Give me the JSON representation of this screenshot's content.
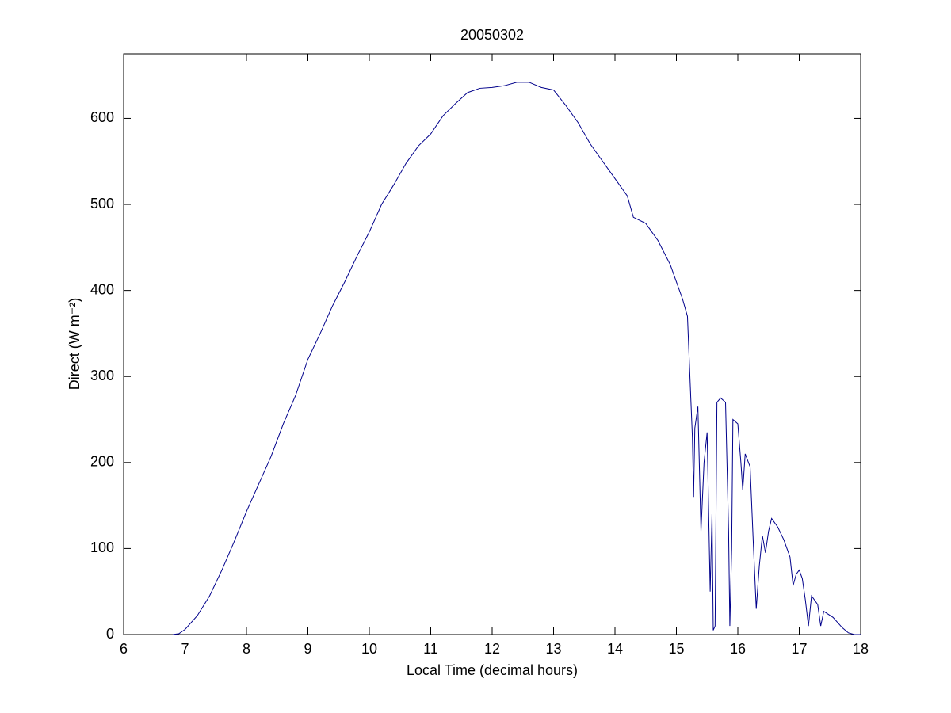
{
  "chart_data": {
    "type": "line",
    "title": "20050302",
    "xlabel": "Local Time (decimal hours)",
    "ylabel": "Direct (W m⁻²)",
    "x": [
      6.8,
      6.9,
      7.0,
      7.2,
      7.4,
      7.6,
      7.8,
      8.0,
      8.2,
      8.4,
      8.6,
      8.8,
      9.0,
      9.2,
      9.4,
      9.6,
      9.8,
      10.0,
      10.2,
      10.4,
      10.6,
      10.8,
      11.0,
      11.2,
      11.4,
      11.6,
      11.8,
      12.0,
      12.2,
      12.4,
      12.6,
      12.8,
      13.0,
      13.2,
      13.4,
      13.6,
      13.8,
      14.0,
      14.2,
      14.3,
      14.5,
      14.7,
      14.9,
      15.0,
      15.1,
      15.18,
      15.22,
      15.26,
      15.28,
      15.3,
      15.35,
      15.4,
      15.45,
      15.5,
      15.55,
      15.58,
      15.6,
      15.63,
      15.66,
      15.72,
      15.8,
      15.85,
      15.87,
      15.9,
      15.92,
      16.0,
      16.05,
      16.08,
      16.12,
      16.2,
      16.25,
      16.3,
      16.35,
      16.4,
      16.45,
      16.5,
      16.55,
      16.65,
      16.75,
      16.85,
      16.9,
      16.95,
      17.0,
      17.05,
      17.1,
      17.15,
      17.2,
      17.3,
      17.35,
      17.4,
      17.55,
      17.7,
      17.8,
      17.9,
      18.0
    ],
    "series": [
      {
        "color": "#00008b",
        "values": [
          0,
          1,
          6,
          22,
          45,
          75,
          108,
          143,
          175,
          207,
          245,
          278,
          320,
          350,
          382,
          410,
          440,
          468,
          500,
          523,
          548,
          568,
          582,
          603,
          617,
          630,
          635,
          636,
          638,
          642,
          642,
          636,
          633,
          615,
          595,
          570,
          550,
          530,
          510,
          485,
          478,
          458,
          430,
          410,
          390,
          370,
          300,
          230,
          160,
          240,
          265,
          120,
          200,
          235,
          50,
          140,
          5,
          10,
          270,
          275,
          270,
          120,
          10,
          100,
          250,
          245,
          200,
          168,
          210,
          195,
          110,
          30,
          80,
          115,
          95,
          120,
          135,
          125,
          110,
          90,
          57,
          70,
          75,
          65,
          40,
          10,
          45,
          35,
          10,
          27,
          20,
          8,
          2,
          0,
          0
        ]
      }
    ],
    "xlim": [
      6,
      18
    ],
    "ylim": [
      0,
      675
    ],
    "xticks": [
      6,
      7,
      8,
      9,
      10,
      11,
      12,
      13,
      14,
      15,
      16,
      17,
      18
    ],
    "yticks": [
      0,
      100,
      200,
      300,
      400,
      500,
      600
    ]
  }
}
